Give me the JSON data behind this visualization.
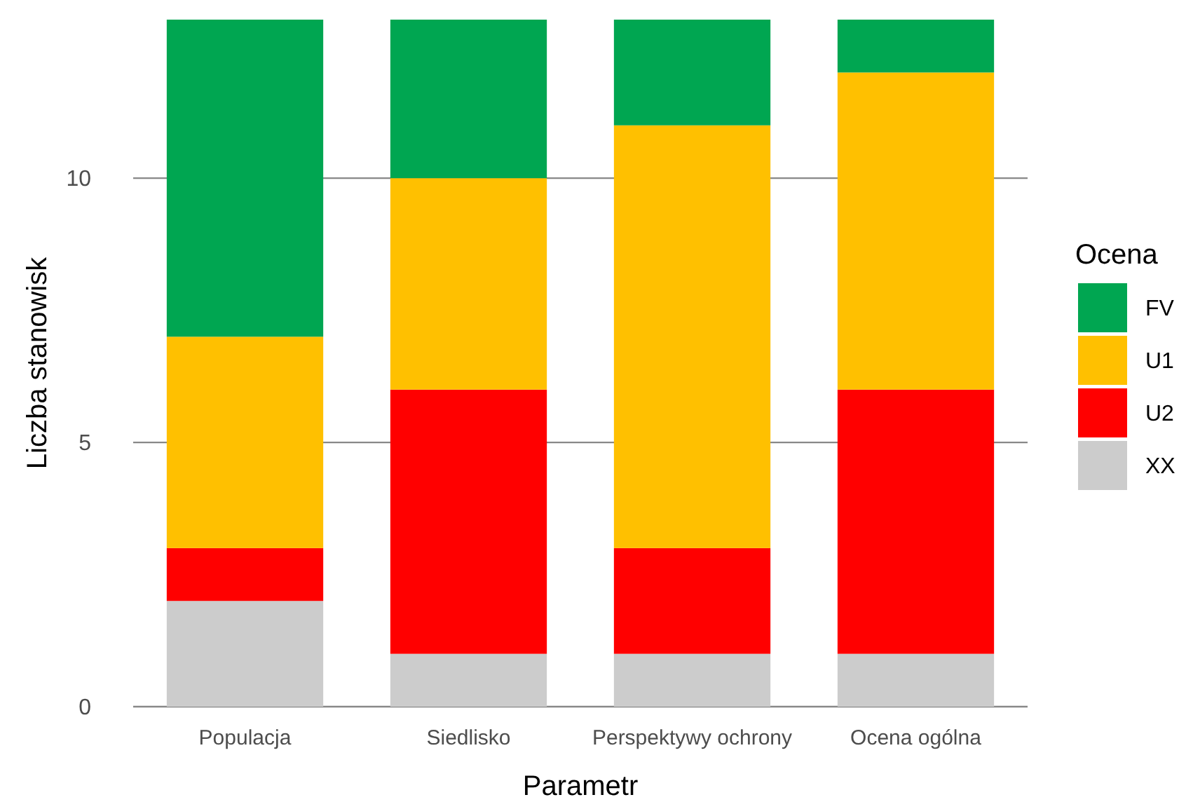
{
  "chart_data": {
    "type": "bar",
    "stacked": true,
    "xlabel": "Parametr",
    "ylabel": "Liczba stanowisk",
    "legend_title": "Ocena",
    "legend": "right",
    "grid": "y",
    "categories": [
      "Populacja",
      "Siedlisko",
      "Perspektywy ochrony",
      "Ocena ogólna"
    ],
    "ylim": [
      0,
      13
    ],
    "yticks": [
      0,
      5,
      10
    ],
    "series": [
      {
        "name": "XX",
        "color": "#cccccc",
        "values": [
          2,
          1,
          1,
          1
        ]
      },
      {
        "name": "U2",
        "color": "#ff0000",
        "values": [
          1,
          5,
          2,
          5
        ]
      },
      {
        "name": "U1",
        "color": "#ffc000",
        "values": [
          4,
          4,
          8,
          6
        ]
      },
      {
        "name": "FV",
        "color": "#00a651",
        "values": [
          6,
          3,
          2,
          1
        ]
      }
    ]
  }
}
